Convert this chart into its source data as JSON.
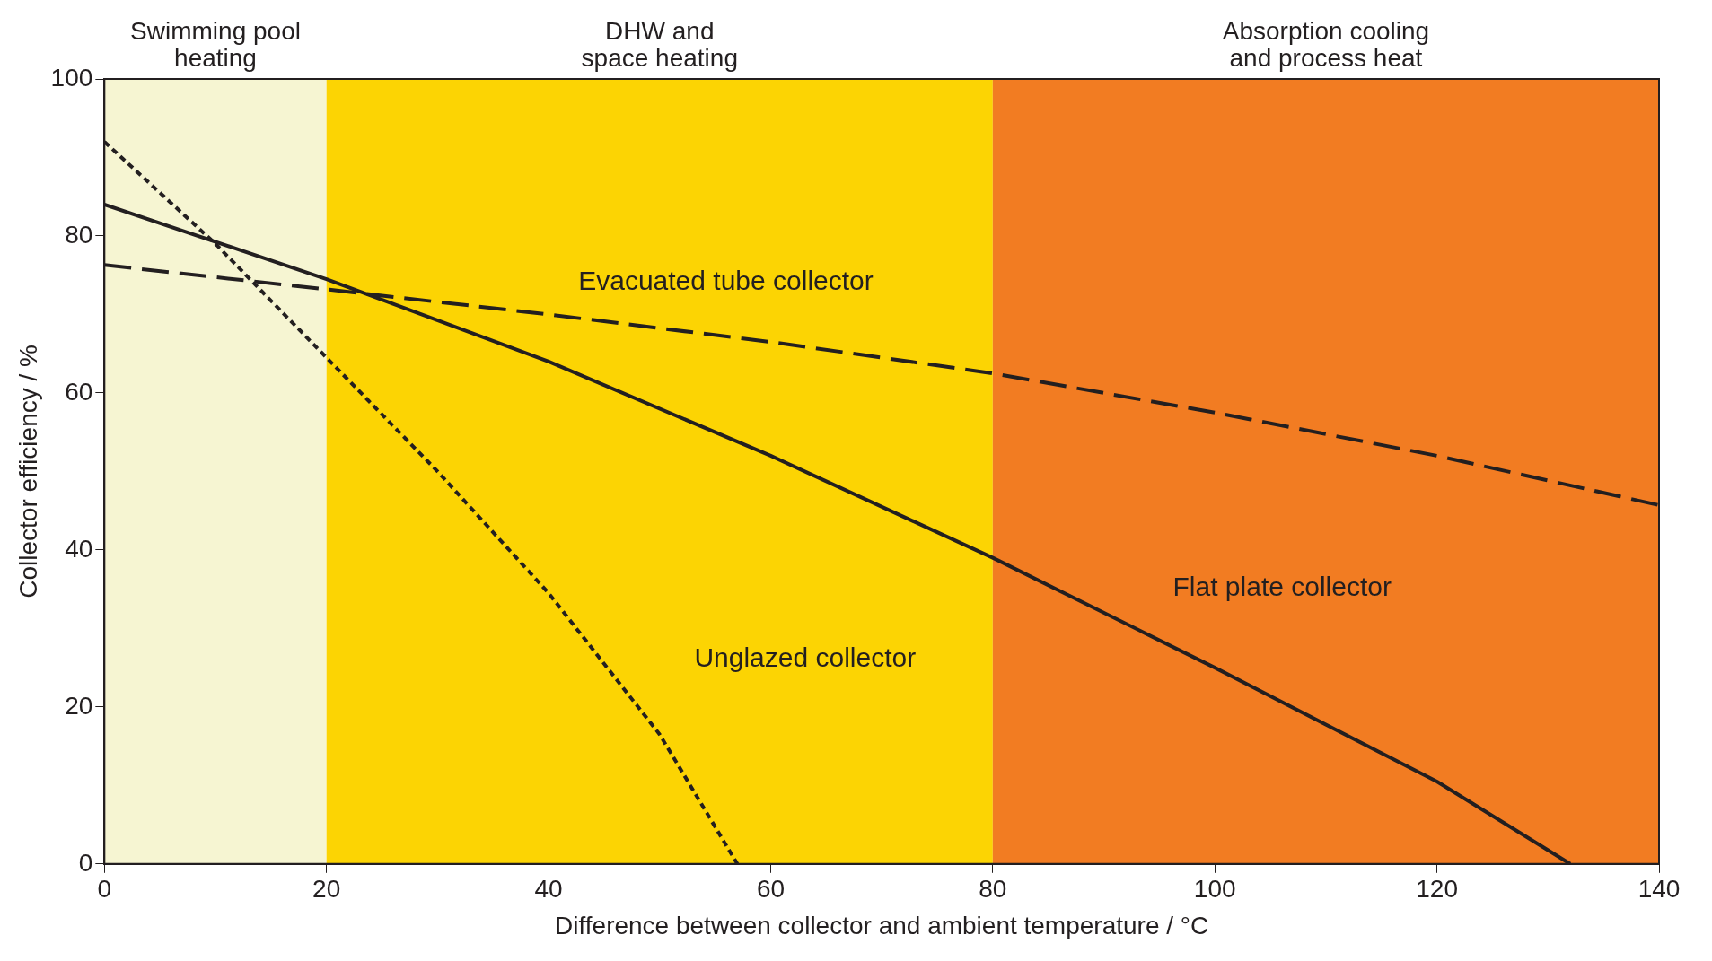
{
  "chart_data": {
    "type": "line",
    "xlabel": "Difference between collector and ambient temperature / °C",
    "ylabel": "Collector efficiency / %",
    "xlim": [
      0,
      140
    ],
    "xticks": [
      0,
      20,
      40,
      60,
      80,
      100,
      120,
      140
    ],
    "ylim": [
      0,
      100
    ],
    "yticks": [
      0,
      20,
      40,
      60,
      80,
      100
    ],
    "grid": false,
    "legend": false,
    "marker": "none",
    "series": [
      {
        "name": "Evacuated tube collector",
        "color": "#231f20",
        "line_style": "dashed",
        "x": [
          0,
          20,
          40,
          60,
          80,
          100,
          120,
          140
        ],
        "values": [
          76.3,
          73.2,
          70,
          66.5,
          62.5,
          57.5,
          52,
          45.7
        ]
      },
      {
        "name": "Flat plate collector",
        "color": "#231f20",
        "line_style": "solid",
        "x": [
          0,
          20,
          40,
          60,
          80,
          100,
          120,
          132
        ],
        "values": [
          84,
          74.5,
          64,
          52,
          39,
          25,
          10.5,
          0
        ]
      },
      {
        "name": "Unglazed collector",
        "color": "#231f20",
        "line_style": "dotted",
        "x": [
          0,
          10,
          20,
          30,
          40,
          50,
          57
        ],
        "values": [
          92,
          79,
          64.5,
          50,
          34.5,
          16.5,
          0
        ]
      }
    ],
    "bands": [
      {
        "axis": "x",
        "from": 0,
        "to": 20,
        "label": "Swimming pool\nheating",
        "color": "#f6f5d2"
      },
      {
        "axis": "x",
        "from": 20,
        "to": 80,
        "label": "DHW and\nspace heating",
        "color": "#fcd403"
      },
      {
        "axis": "x",
        "from": 80,
        "to": 140,
        "label": "Absorption cooling\nand process heat",
        "color": "#f27c22"
      }
    ]
  }
}
